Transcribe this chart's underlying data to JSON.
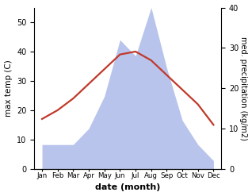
{
  "months": [
    "Jan",
    "Feb",
    "Mar",
    "Apr",
    "May",
    "Jun",
    "Jul",
    "Aug",
    "Sep",
    "Oct",
    "Nov",
    "Dec"
  ],
  "temperature": [
    17,
    20,
    24,
    29,
    34,
    39,
    40,
    37,
    32,
    27,
    22,
    15
  ],
  "precipitation": [
    6,
    6,
    6,
    10,
    18,
    32,
    28,
    40,
    25,
    12,
    6,
    2
  ],
  "temp_color": "#c0392b",
  "precip_fill_color": "#b8c4ec",
  "left_ylim": [
    0,
    55
  ],
  "left_yticks": [
    0,
    10,
    20,
    30,
    40,
    50
  ],
  "right_ylim": [
    0,
    40
  ],
  "right_yticks": [
    0,
    10,
    20,
    30,
    40
  ],
  "xlabel": "date (month)",
  "ylabel_left": "max temp (C)",
  "ylabel_right": "med. precipitation (kg/m2)",
  "temp_linewidth": 1.6,
  "bg_color": "#ffffff"
}
